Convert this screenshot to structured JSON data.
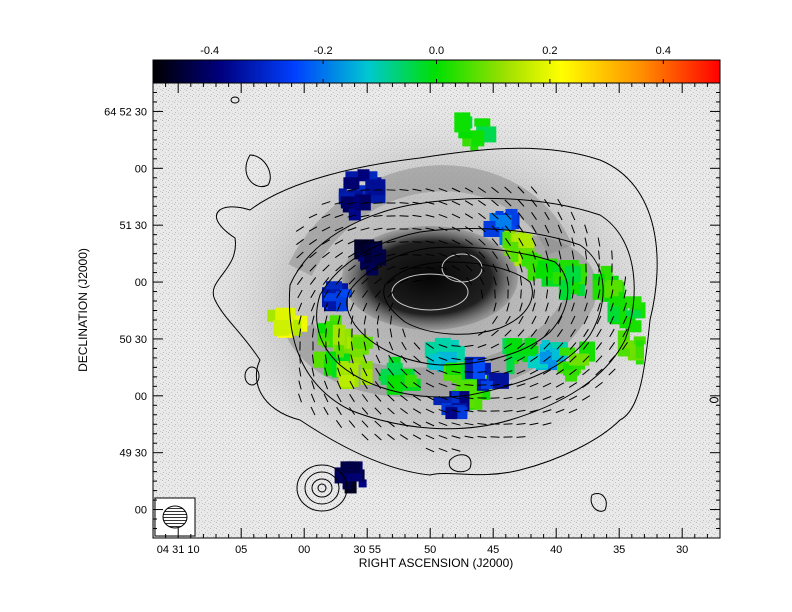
{
  "chart_data": {
    "type": "heatmap",
    "title": "",
    "xlabel": "RIGHT ASCENSION (J2000)",
    "ylabel": "DECLINATION (J2000)",
    "x_ticks": [
      "04 31 10",
      "05",
      "00",
      "30 55",
      "50",
      "45",
      "40",
      "35",
      "30"
    ],
    "y_ticks": [
      "64 52 30",
      "00",
      "51 30",
      "00",
      "50 30",
      "00",
      "49 30",
      "00"
    ],
    "x_tick_seconds": [
      70,
      65,
      60,
      55,
      50,
      45,
      40,
      35,
      30
    ],
    "y_tick_arcsec": [
      150,
      120,
      90,
      60,
      30,
      0,
      -30,
      -60
    ],
    "colorbar": {
      "ticks": [
        "-0.4",
        "-0.2",
        "0.0",
        "0.2",
        "0.4"
      ],
      "tick_values": [
        -0.4,
        -0.2,
        0.0,
        0.2,
        0.4
      ],
      "range": [
        -0.5,
        0.5
      ],
      "colors": [
        "#000000",
        "#00007f",
        "#0050ff",
        "#00d0d0",
        "#00e000",
        "#8fe000",
        "#ffff00",
        "#ff9000",
        "#ff0000"
      ]
    },
    "xlim_seconds": [
      72,
      27
    ],
    "ylim_arcsec": [
      165,
      -75
    ],
    "regions": [
      {
        "ra_s": 54.6,
        "dec_as": 73,
        "value": -0.42
      },
      {
        "ra_s": 55.3,
        "dec_as": 110,
        "value": -0.35
      },
      {
        "ra_s": 57.0,
        "dec_as": 52,
        "value": -0.3
      },
      {
        "ra_s": 61.5,
        "dec_as": 38,
        "value": 0.2
      },
      {
        "ra_s": 57.5,
        "dec_as": 33,
        "value": 0.05
      },
      {
        "ra_s": 56.3,
        "dec_as": 28,
        "value": 0.12
      },
      {
        "ra_s": 57.8,
        "dec_as": 17,
        "value": 0.03
      },
      {
        "ra_s": 56.0,
        "dec_as": 12,
        "value": 0.15
      },
      {
        "ra_s": 52.5,
        "dec_as": 10,
        "value": 0.0
      },
      {
        "ra_s": 49.0,
        "dec_as": 20,
        "value": -0.12
      },
      {
        "ra_s": 47.5,
        "dec_as": 10,
        "value": 0.02
      },
      {
        "ra_s": 46.5,
        "dec_as": 0,
        "value": 0.04
      },
      {
        "ra_s": 43.0,
        "dec_as": 22,
        "value": 0.0
      },
      {
        "ra_s": 40.5,
        "dec_as": 22,
        "value": -0.15
      },
      {
        "ra_s": 38.5,
        "dec_as": 17,
        "value": 0.05
      },
      {
        "ra_s": 44.5,
        "dec_as": 88,
        "value": -0.25
      },
      {
        "ra_s": 43.0,
        "dec_as": 78,
        "value": 0.12
      },
      {
        "ra_s": 41.0,
        "dec_as": 65,
        "value": 0.02
      },
      {
        "ra_s": 39.0,
        "dec_as": 60,
        "value": 0.0
      },
      {
        "ra_s": 36.0,
        "dec_as": 58,
        "value": 0.03
      },
      {
        "ra_s": 34.5,
        "dec_as": 43,
        "value": 0.0
      },
      {
        "ra_s": 34.0,
        "dec_as": 25,
        "value": 0.05
      },
      {
        "ra_s": 45.5,
        "dec_as": 10,
        "value": -0.3
      },
      {
        "ra_s": 48.0,
        "dec_as": -7,
        "value": -0.33
      },
      {
        "ra_s": 56.0,
        "dec_as": -42,
        "value": -0.42
      },
      {
        "ra_s": 56.3,
        "dec_as": 102,
        "value": -0.38
      },
      {
        "ra_s": 46.5,
        "dec_as": 140,
        "value": 0.0
      }
    ]
  },
  "figure": {
    "ra_center_s": 49.0,
    "dec_center_as": 45.0,
    "colors": {
      "frame": "#000000",
      "gray_background": "#a8a8a8",
      "nucleus": "#101010"
    }
  }
}
